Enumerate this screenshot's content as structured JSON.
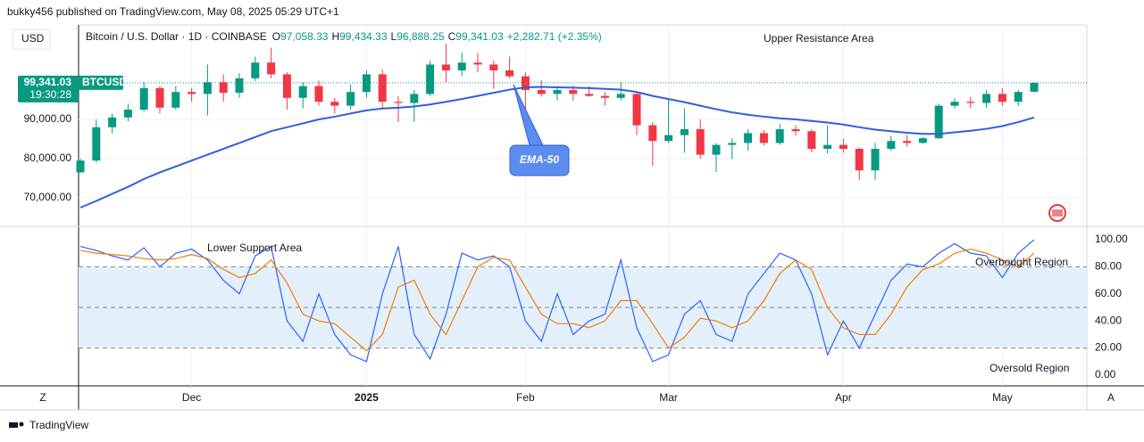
{
  "header": {
    "byline": "bukky456 published on TradingView.com, May 08, 2025 05:29 UTC+1",
    "currency": "USD",
    "brand": "TradingView",
    "left_button": "Z",
    "right_button": "A"
  },
  "chart_data": [
    {
      "type": "candlestick",
      "symbol": "Bitcoin / U.S. Dollar · 1D · COINBASE",
      "legend_fields": [
        {
          "label": "O",
          "text": "97,058.33"
        },
        {
          "label": "H",
          "text": "99,434.33"
        },
        {
          "label": "L",
          "text": "96,888.25"
        },
        {
          "label": "C",
          "text": "99,341.03"
        }
      ],
      "change": "+2,282.71 (+2.35%)",
      "last_price": {
        "value": 99341.03,
        "label": "99,341.03"
      },
      "countdown": "19:30:28",
      "ticker": "BTCUSD",
      "categories": [
        null,
        null,
        null,
        null,
        null,
        null,
        null,
        "Dec",
        null,
        null,
        null,
        null,
        null,
        null,
        null,
        null,
        null,
        null,
        "2025",
        null,
        null,
        null,
        null,
        null,
        null,
        null,
        null,
        null,
        "Feb",
        null,
        null,
        null,
        null,
        null,
        null,
        null,
        null,
        "Mar",
        null,
        null,
        null,
        null,
        null,
        null,
        null,
        null,
        null,
        null,
        "Apr",
        null,
        null,
        null,
        null,
        null,
        null,
        null,
        null,
        null,
        "May",
        null,
        null
      ],
      "open": [
        76500,
        79500,
        88000,
        90500,
        92500,
        98000,
        93000,
        97000,
        96500,
        99500,
        96800,
        100500,
        104500,
        101500,
        95500,
        98500,
        94500,
        93500,
        97000,
        101500,
        94500,
        94200,
        96500,
        104000,
        102500,
        104500,
        104000,
        102500,
        101000,
        97500,
        96500,
        97500,
        96500,
        96000,
        95500,
        96500,
        88500,
        84500,
        86000,
        87500,
        81000,
        83500,
        84000,
        86500,
        84000,
        87500,
        87000,
        82500,
        83500,
        82500,
        77000,
        82500,
        84500,
        84000,
        85200,
        93500,
        94500,
        94200,
        96500,
        94500,
        97058.33
      ],
      "high": [
        80000,
        90000,
        91500,
        94000,
        99500,
        98500,
        98500,
        98000,
        104000,
        101500,
        101800,
        106000,
        108300,
        102000,
        99500,
        99900,
        95500,
        98900,
        102500,
        102700,
        95900,
        97500,
        105000,
        109300,
        107000,
        107000,
        105000,
        106000,
        102000,
        100000,
        98500,
        98700,
        98500,
        97000,
        99500,
        96800,
        89300,
        95000,
        92800,
        90000,
        84000,
        85200,
        87500,
        87300,
        88800,
        88500,
        87500,
        88500,
        85000,
        82800,
        84000,
        85800,
        86000,
        85500,
        94000,
        95500,
        95800,
        97500,
        97900,
        97500,
        99434.33
      ],
      "low": [
        76300,
        79000,
        86500,
        89500,
        92000,
        91500,
        92500,
        94500,
        91000,
        94500,
        95500,
        99800,
        100500,
        92500,
        92800,
        93500,
        91500,
        92500,
        95500,
        92500,
        89300,
        89400,
        96000,
        99500,
        101000,
        102000,
        97800,
        100500,
        91300,
        95800,
        94800,
        94800,
        95800,
        93500,
        94800,
        86000,
        78200,
        84000,
        81500,
        80000,
        76600,
        79900,
        82000,
        83300,
        83500,
        85900,
        81600,
        81300,
        81500,
        74500,
        74600,
        82000,
        83000,
        83800,
        85000,
        92800,
        92900,
        92900,
        93500,
        93400,
        96888.25
      ],
      "close": [
        79500,
        88000,
        90500,
        92500,
        98000,
        93000,
        97000,
        96500,
        99500,
        96800,
        100500,
        104500,
        101500,
        95500,
        98500,
        94500,
        93500,
        97000,
        101500,
        94500,
        94200,
        96500,
        104000,
        102500,
        104500,
        104000,
        102500,
        101000,
        97500,
        96500,
        97500,
        96500,
        96000,
        95500,
        96500,
        88500,
        84500,
        86000,
        87500,
        81000,
        83500,
        84000,
        86500,
        84000,
        87500,
        87000,
        82500,
        83500,
        82500,
        77000,
        82500,
        84500,
        84000,
        85200,
        93500,
        94500,
        94200,
        96500,
        94500,
        97000,
        99341.03
      ],
      "up_color": "#089981",
      "down_color": "#f23645",
      "overlay": {
        "color": "#2f5fe0",
        "values": [
          67500,
          69200,
          71000,
          72800,
          74800,
          76500,
          78000,
          79500,
          81000,
          82500,
          84000,
          85500,
          87000,
          88000,
          89000,
          90000,
          90700,
          91500,
          92300,
          92800,
          93000,
          93300,
          93800,
          94500,
          95200,
          96000,
          96800,
          97600,
          98200,
          98300,
          98200,
          98100,
          98000,
          97800,
          97600,
          97000,
          96000,
          95200,
          94400,
          93500,
          92600,
          91800,
          91200,
          90700,
          90300,
          90000,
          89600,
          89200,
          88700,
          88000,
          87400,
          87000,
          86600,
          86300,
          86300,
          86700,
          87100,
          87600,
          88300,
          89300,
          90500
        ]
      },
      "annotations": [
        "Upper Resistance Area",
        "EMA-50"
      ],
      "ylim": [
        62950,
        114100
      ],
      "yticks": [
        {
          "value": 70000,
          "label": "70,000.00"
        },
        {
          "value": 80000,
          "label": "80,000.00"
        },
        {
          "value": 90000,
          "label": "90,000.00"
        }
      ],
      "grid": true
    },
    {
      "type": "line",
      "series": [
        {
          "color": "#2962ff",
          "values": [
            95,
            92,
            88,
            85,
            94,
            80,
            90,
            93,
            85,
            70,
            60,
            88,
            95,
            40,
            25,
            60,
            30,
            15,
            10,
            60,
            95,
            30,
            12,
            45,
            90,
            85,
            88,
            80,
            40,
            25,
            60,
            30,
            40,
            45,
            85,
            35,
            10,
            15,
            45,
            55,
            30,
            25,
            60,
            75,
            90,
            85,
            60,
            15,
            40,
            20,
            45,
            70,
            82,
            80,
            90,
            97,
            90,
            88,
            72,
            90,
            100
          ]
        },
        {
          "color": "#f57c00",
          "values": [
            92,
            90,
            89,
            88,
            86,
            85,
            86,
            89,
            86,
            78,
            72,
            75,
            85,
            68,
            45,
            40,
            38,
            28,
            18,
            30,
            65,
            70,
            45,
            30,
            55,
            80,
            87,
            85,
            65,
            45,
            38,
            38,
            35,
            40,
            55,
            55,
            38,
            20,
            28,
            42,
            40,
            35,
            40,
            55,
            75,
            85,
            78,
            50,
            35,
            30,
            30,
            45,
            65,
            78,
            82,
            90,
            93,
            90,
            85,
            80,
            90
          ]
        }
      ],
      "levels": [
        80,
        50,
        20
      ],
      "band_color": "#e3f0fc",
      "annotations": [
        "Lower Support Area",
        "Overbought Region",
        "Oversold Region"
      ],
      "ylim": [
        -7.9,
        108.5
      ],
      "yticks": [
        {
          "value": 0,
          "label": "0.00"
        },
        {
          "value": 20,
          "label": "20.00"
        },
        {
          "value": 40,
          "label": "40.00"
        },
        {
          "value": 60,
          "label": "60.00"
        },
        {
          "value": 80,
          "label": "80.00"
        },
        {
          "value": 100,
          "label": "100.00"
        }
      ]
    }
  ]
}
